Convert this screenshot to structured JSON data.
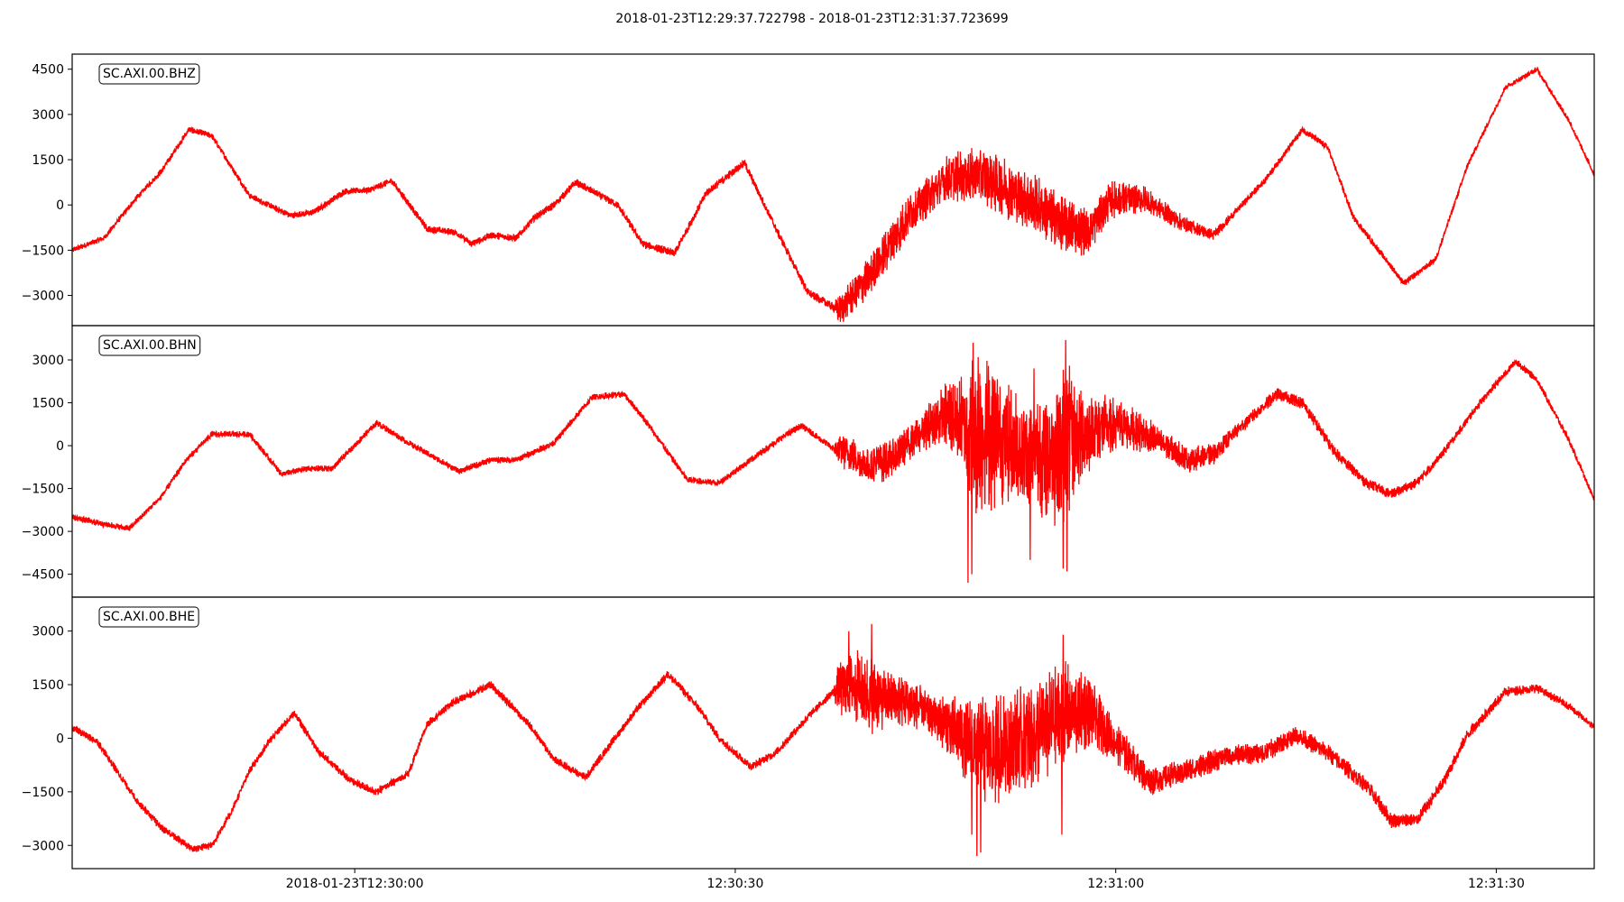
{
  "title": "2018-01-23T12:29:37.722798  -  2018-01-23T12:31:37.723699",
  "chart_data": {
    "type": "line",
    "x_unit": "seconds after 2018-01-23T12:29:37.722798",
    "xlim": [
      0,
      120.0009
    ],
    "x_ticks": [
      {
        "value": 22.277202,
        "label": "2018-01-23T12:30:00"
      },
      {
        "value": 52.277202,
        "label": "12:30:30"
      },
      {
        "value": 82.277202,
        "label": "12:31:00"
      },
      {
        "value": 112.277202,
        "label": "12:31:30"
      }
    ],
    "color": "#ff0000",
    "grid": false,
    "panels": [
      {
        "name": "SC.AXI.00.BHZ",
        "ylim": [
          -4000,
          5000
        ],
        "yticks": [
          -3000,
          -1500,
          0,
          1500,
          3000,
          4500
        ],
        "envelope": [
          [
            0,
            -1500
          ],
          [
            2.5,
            -1100
          ],
          [
            5,
            200
          ],
          [
            7,
            1100
          ],
          [
            9.2,
            2500
          ],
          [
            11,
            2300
          ],
          [
            14,
            300
          ],
          [
            17.2,
            -350
          ],
          [
            19,
            -250
          ],
          [
            21.5,
            450
          ],
          [
            23.5,
            500
          ],
          [
            25.2,
            800
          ],
          [
            28,
            -800
          ],
          [
            30.2,
            -900
          ],
          [
            31.5,
            -1300
          ],
          [
            33,
            -1000
          ],
          [
            35,
            -1100
          ],
          [
            36.5,
            -400
          ],
          [
            38,
            0
          ],
          [
            39.7,
            750
          ],
          [
            43,
            0
          ],
          [
            45,
            -1300
          ],
          [
            47.5,
            -1600
          ],
          [
            50,
            400
          ],
          [
            53,
            1400
          ],
          [
            55.5,
            -800
          ],
          [
            58,
            -2900
          ],
          [
            60.5,
            -3500
          ],
          [
            63,
            -2300
          ],
          [
            66,
            -300
          ],
          [
            69,
            900
          ],
          [
            71.5,
            1000
          ],
          [
            73.5,
            600
          ],
          [
            76,
            0
          ],
          [
            78,
            -600
          ],
          [
            80,
            -900
          ],
          [
            82,
            200
          ],
          [
            84.5,
            200
          ],
          [
            87.5,
            -600
          ],
          [
            90,
            -1000
          ],
          [
            94,
            800
          ],
          [
            97,
            2500
          ],
          [
            99,
            1900
          ],
          [
            101,
            -400
          ],
          [
            105,
            -2600
          ],
          [
            107.5,
            -1800
          ],
          [
            110,
            1300
          ],
          [
            113,
            3900
          ],
          [
            115.5,
            4500
          ],
          [
            118,
            2800
          ],
          [
            120,
            1000
          ]
        ],
        "noise": [
          [
            0,
            80
          ],
          [
            60,
            120
          ],
          [
            60.5,
            450
          ],
          [
            64,
            600
          ],
          [
            68,
            550
          ],
          [
            70,
            700
          ],
          [
            73,
            850
          ],
          [
            78,
            800
          ],
          [
            84,
            400
          ],
          [
            88,
            200
          ],
          [
            92,
            100
          ],
          [
            120,
            70
          ]
        ]
      },
      {
        "name": "SC.AXI.00.BHN",
        "ylim": [
          -5300,
          4200
        ],
        "yticks": [
          -4500,
          -3000,
          -1500,
          0,
          1500,
          3000
        ],
        "envelope": [
          [
            0,
            -2500
          ],
          [
            2,
            -2700
          ],
          [
            4.5,
            -2900
          ],
          [
            7,
            -1800
          ],
          [
            9,
            -500
          ],
          [
            11,
            400
          ],
          [
            14,
            400
          ],
          [
            16.5,
            -1000
          ],
          [
            18.5,
            -800
          ],
          [
            20.5,
            -800
          ],
          [
            24,
            800
          ],
          [
            26.5,
            100
          ],
          [
            30.5,
            -900
          ],
          [
            33,
            -500
          ],
          [
            35,
            -500
          ],
          [
            38,
            100
          ],
          [
            41,
            1700
          ],
          [
            43.5,
            1800
          ],
          [
            45,
            1000
          ],
          [
            48.5,
            -1200
          ],
          [
            51,
            -1300
          ],
          [
            53.5,
            -500
          ],
          [
            56,
            300
          ],
          [
            57.5,
            700
          ],
          [
            60,
            -100
          ],
          [
            61.5,
            -300
          ],
          [
            62.5,
            -700
          ],
          [
            64.5,
            -500
          ],
          [
            67.5,
            700
          ],
          [
            69,
            1100
          ],
          [
            71,
            500
          ],
          [
            73,
            300
          ],
          [
            75,
            -200
          ],
          [
            77,
            -300
          ],
          [
            79,
            300
          ],
          [
            81,
            600
          ],
          [
            83,
            700
          ],
          [
            85.5,
            200
          ],
          [
            88,
            -500
          ],
          [
            90,
            -300
          ],
          [
            92,
            600
          ],
          [
            95,
            1800
          ],
          [
            97,
            1500
          ],
          [
            99.5,
            -200
          ],
          [
            102,
            -1300
          ],
          [
            104,
            -1700
          ],
          [
            106,
            -1300
          ],
          [
            108,
            -300
          ],
          [
            111,
            1500
          ],
          [
            113.8,
            2950
          ],
          [
            115.5,
            2300
          ],
          [
            118,
            200
          ],
          [
            120,
            -1900
          ]
        ],
        "noise": [
          [
            0,
            90
          ],
          [
            60,
            100
          ],
          [
            60.5,
            500
          ],
          [
            64,
            600
          ],
          [
            66,
            500
          ],
          [
            68,
            700
          ],
          [
            70,
            1300
          ],
          [
            71,
            2400
          ],
          [
            72.5,
            2200
          ],
          [
            74,
            1600
          ],
          [
            76,
            1700
          ],
          [
            77.5,
            2200
          ],
          [
            78.5,
            2300
          ],
          [
            80,
            1200
          ],
          [
            83,
            700
          ],
          [
            86,
            400
          ],
          [
            89,
            350
          ],
          [
            92,
            200
          ],
          [
            120,
            80
          ]
        ],
        "spikes": [
          [
            70.6,
            -4800
          ],
          [
            71.0,
            3600
          ],
          [
            71.4,
            3100
          ],
          [
            70.9,
            -4500
          ],
          [
            75.5,
            -4000
          ],
          [
            75.8,
            2700
          ],
          [
            78.3,
            3700
          ],
          [
            78.4,
            -4400
          ],
          [
            78.6,
            2800
          ],
          [
            78.1,
            -4300
          ]
        ]
      },
      {
        "name": "SC.AXI.00.BHE",
        "ylim": [
          -3650,
          3950
        ],
        "yticks": [
          -3000,
          -1500,
          0,
          1500,
          3000
        ],
        "envelope": [
          [
            0,
            300
          ],
          [
            2,
            -100
          ],
          [
            5,
            -1700
          ],
          [
            7,
            -2500
          ],
          [
            9.5,
            -3100
          ],
          [
            11,
            -3000
          ],
          [
            12.5,
            -2100
          ],
          [
            14,
            -900
          ],
          [
            15.5,
            -100
          ],
          [
            17.5,
            700
          ],
          [
            19.5,
            -400
          ],
          [
            22,
            -1200
          ],
          [
            24,
            -1500
          ],
          [
            26.5,
            -1000
          ],
          [
            28,
            400
          ],
          [
            30,
            1000
          ],
          [
            33,
            1500
          ],
          [
            36,
            400
          ],
          [
            38,
            -600
          ],
          [
            40.5,
            -1100
          ],
          [
            43,
            100
          ],
          [
            44.5,
            800
          ],
          [
            47,
            1800
          ],
          [
            49.5,
            800
          ],
          [
            51,
            0
          ],
          [
            53.5,
            -800
          ],
          [
            55.5,
            -400
          ],
          [
            58,
            600
          ],
          [
            60,
            1300
          ],
          [
            61.5,
            1500
          ],
          [
            63,
            1200
          ],
          [
            66,
            1000
          ],
          [
            69,
            400
          ],
          [
            71,
            -200
          ],
          [
            72.5,
            -400
          ],
          [
            74,
            -100
          ],
          [
            76,
            100
          ],
          [
            78,
            600
          ],
          [
            80,
            800
          ],
          [
            82,
            0
          ],
          [
            85,
            -1200
          ],
          [
            88,
            -900
          ],
          [
            91,
            -500
          ],
          [
            94,
            -400
          ],
          [
            96.5,
            100
          ],
          [
            99,
            -400
          ],
          [
            102,
            -1300
          ],
          [
            104,
            -2300
          ],
          [
            106,
            -2300
          ],
          [
            108,
            -1300
          ],
          [
            110,
            100
          ],
          [
            113,
            1300
          ],
          [
            115.5,
            1400
          ],
          [
            118,
            900
          ],
          [
            120,
            300
          ]
        ],
        "noise": [
          [
            0,
            90
          ],
          [
            60,
            100
          ],
          [
            60.5,
            800
          ],
          [
            63,
            900
          ],
          [
            65,
            600
          ],
          [
            68,
            500
          ],
          [
            70,
            900
          ],
          [
            71.5,
            1300
          ],
          [
            73,
            1300
          ],
          [
            76,
            1200
          ],
          [
            78,
            1300
          ],
          [
            80,
            900
          ],
          [
            82,
            500
          ],
          [
            86,
            300
          ],
          [
            92,
            250
          ],
          [
            120,
            80
          ]
        ],
        "spikes": [
          [
            63.0,
            3200
          ],
          [
            61.2,
            3000
          ],
          [
            71.3,
            -3300
          ],
          [
            70.9,
            -2700
          ],
          [
            78.1,
            2900
          ],
          [
            78.0,
            -2700
          ],
          [
            71.6,
            -3200
          ]
        ]
      }
    ]
  }
}
